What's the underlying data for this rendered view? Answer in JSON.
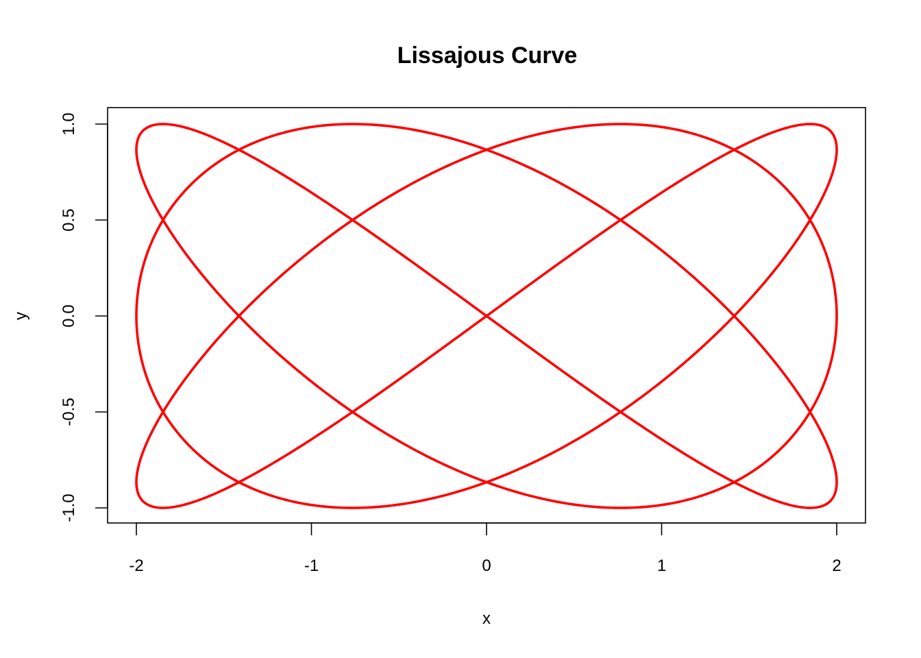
{
  "chart_data": {
    "type": "line",
    "title": "Lissajous Curve",
    "xlabel": "x",
    "ylabel": "y",
    "xlim": [
      -2,
      2
    ],
    "ylim": [
      -1,
      1
    ],
    "x_ticks": [
      -2,
      -1,
      0,
      1,
      2
    ],
    "x_tick_labels": [
      "-2",
      "-1",
      "0",
      "1",
      "2"
    ],
    "y_ticks": [
      -1.0,
      -0.5,
      0.0,
      0.5,
      1.0
    ],
    "y_tick_labels": [
      "-1.0",
      "-0.5",
      "0.0",
      "0.5",
      "1.0"
    ],
    "curve": {
      "x_amplitude": 2,
      "y_amplitude": 1,
      "x_frequency": 3,
      "y_frequency": 4,
      "phase": 0.7854
    },
    "line_color": "#ff0000",
    "grid": false,
    "legend": false
  }
}
